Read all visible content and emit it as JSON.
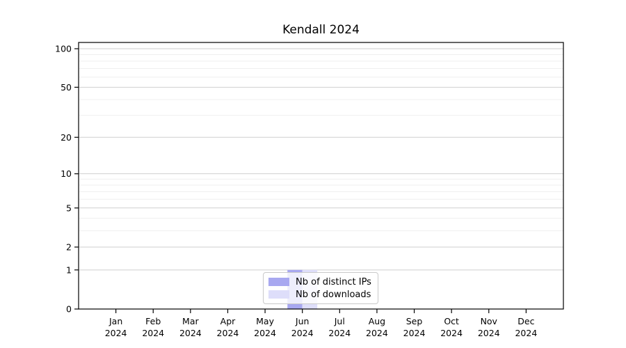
{
  "chart_data": {
    "type": "bar",
    "title": "Kendall 2024",
    "x_categories": [
      {
        "month": "Jan",
        "year": "2024"
      },
      {
        "month": "Feb",
        "year": "2024"
      },
      {
        "month": "Mar",
        "year": "2024"
      },
      {
        "month": "Apr",
        "year": "2024"
      },
      {
        "month": "May",
        "year": "2024"
      },
      {
        "month": "Jun",
        "year": "2024"
      },
      {
        "month": "Jul",
        "year": "2024"
      },
      {
        "month": "Aug",
        "year": "2024"
      },
      {
        "month": "Sep",
        "year": "2024"
      },
      {
        "month": "Oct",
        "year": "2024"
      },
      {
        "month": "Nov",
        "year": "2024"
      },
      {
        "month": "Dec",
        "year": "2024"
      }
    ],
    "series": [
      {
        "name": "Nb of distinct IPs",
        "color": "#a8a8f0",
        "values": [
          0,
          0,
          0,
          0,
          0,
          1,
          0,
          0,
          0,
          0,
          0,
          0
        ]
      },
      {
        "name": "Nb of downloads",
        "color": "#dedefa",
        "values": [
          0,
          0,
          0,
          0,
          0,
          1,
          0,
          0,
          0,
          0,
          0,
          0
        ]
      }
    ],
    "y_axis": {
      "scale": "log1p",
      "major_ticks": [
        0,
        1,
        2,
        5,
        10,
        20,
        50,
        100
      ],
      "minor_ticks": [
        3,
        4,
        6,
        7,
        8,
        9,
        30,
        40,
        60,
        70,
        80,
        90
      ],
      "range_max": 112
    },
    "grid": true,
    "legend": {
      "position": "bottom-center"
    }
  },
  "colors": {
    "grid_major": "#cfcfcf",
    "grid_minor": "#efefef",
    "axis": "#000000",
    "tick_label": "#000000",
    "legend_border": "#c9c9c9"
  }
}
